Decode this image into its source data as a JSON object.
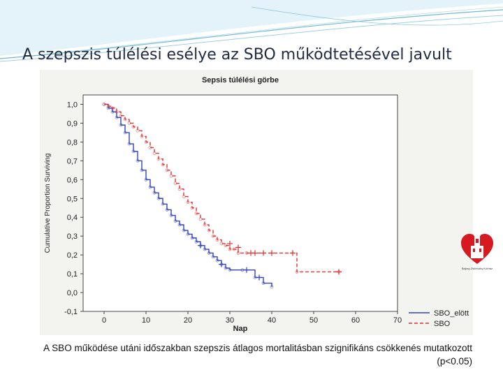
{
  "slide": {
    "title": "A szepszis túlélési esélye az SBO működtetésével javult",
    "caption": "A SBO működése utáni időszakban szepszis átlagos mortalitásban szignifikáns csökkenés mutatkozott (p<0.05)"
  },
  "logo": {
    "icon": "heart-church-logo-icon",
    "text": "Bajcsy-Zsilinszky Kórház"
  },
  "chart_data": {
    "type": "line",
    "title": "Sepsis túlélési görbe",
    "xlabel": "Nap",
    "ylabel": "Cumulative Proportion Surviving",
    "xlim": [
      -5,
      70
    ],
    "ylim": [
      -0.1,
      1.05
    ],
    "xticks": [
      0,
      10,
      20,
      30,
      40,
      50,
      60,
      70
    ],
    "xtick_labels": [
      "0",
      "10",
      "20",
      "30",
      "40",
      "50",
      "60",
      "70"
    ],
    "yticks": [
      -0.1,
      0.0,
      0.1,
      0.2,
      0.3,
      0.4,
      0.5,
      0.6,
      0.7,
      0.8,
      0.9,
      1.0
    ],
    "ytick_labels": [
      "-0,1",
      "0,0",
      "0,1",
      "0,2",
      "0,3",
      "0,4",
      "0,5",
      "0,6",
      "0,7",
      "0,8",
      "0,9",
      "1,0"
    ],
    "grid": false,
    "legend_position": "bottom-right",
    "series": [
      {
        "name": "SBO_elött",
        "color": "#3344bb",
        "dash": "solid",
        "x": [
          0,
          1,
          2,
          3,
          4,
          5,
          6,
          7,
          8,
          9,
          10,
          11,
          12,
          13,
          14,
          15,
          16,
          17,
          18,
          19,
          20,
          21,
          22,
          23,
          24,
          25,
          26,
          27,
          28,
          29,
          30,
          33,
          36,
          38,
          40
        ],
        "y": [
          1.0,
          0.98,
          0.96,
          0.93,
          0.89,
          0.85,
          0.79,
          0.75,
          0.7,
          0.65,
          0.6,
          0.56,
          0.53,
          0.5,
          0.47,
          0.44,
          0.41,
          0.38,
          0.36,
          0.33,
          0.31,
          0.29,
          0.27,
          0.25,
          0.23,
          0.21,
          0.19,
          0.17,
          0.15,
          0.13,
          0.12,
          0.12,
          0.08,
          0.05,
          0.03
        ],
        "censored_x": [
          23,
          28,
          34,
          37
        ],
        "censored_y": [
          0.25,
          0.15,
          0.12,
          0.08
        ]
      },
      {
        "name": "SBO",
        "color": "#dd3333",
        "dash": "dashed",
        "x": [
          0,
          1,
          2,
          3,
          4,
          5,
          6,
          7,
          8,
          9,
          10,
          11,
          12,
          13,
          14,
          15,
          16,
          17,
          18,
          19,
          20,
          21,
          22,
          23,
          24,
          25,
          26,
          27,
          28,
          29,
          30,
          31,
          32,
          34,
          46,
          56
        ],
        "y": [
          1.0,
          0.99,
          0.98,
          0.96,
          0.94,
          0.92,
          0.9,
          0.88,
          0.86,
          0.83,
          0.8,
          0.77,
          0.74,
          0.71,
          0.68,
          0.65,
          0.62,
          0.58,
          0.55,
          0.51,
          0.48,
          0.45,
          0.42,
          0.39,
          0.36,
          0.33,
          0.3,
          0.28,
          0.26,
          0.25,
          0.23,
          0.23,
          0.21,
          0.21,
          0.11,
          0.11
        ],
        "censored_x": [
          30,
          32,
          35,
          36,
          38,
          40,
          45,
          56
        ],
        "censored_y": [
          0.26,
          0.24,
          0.21,
          0.21,
          0.21,
          0.21,
          0.21,
          0.11
        ]
      }
    ]
  }
}
